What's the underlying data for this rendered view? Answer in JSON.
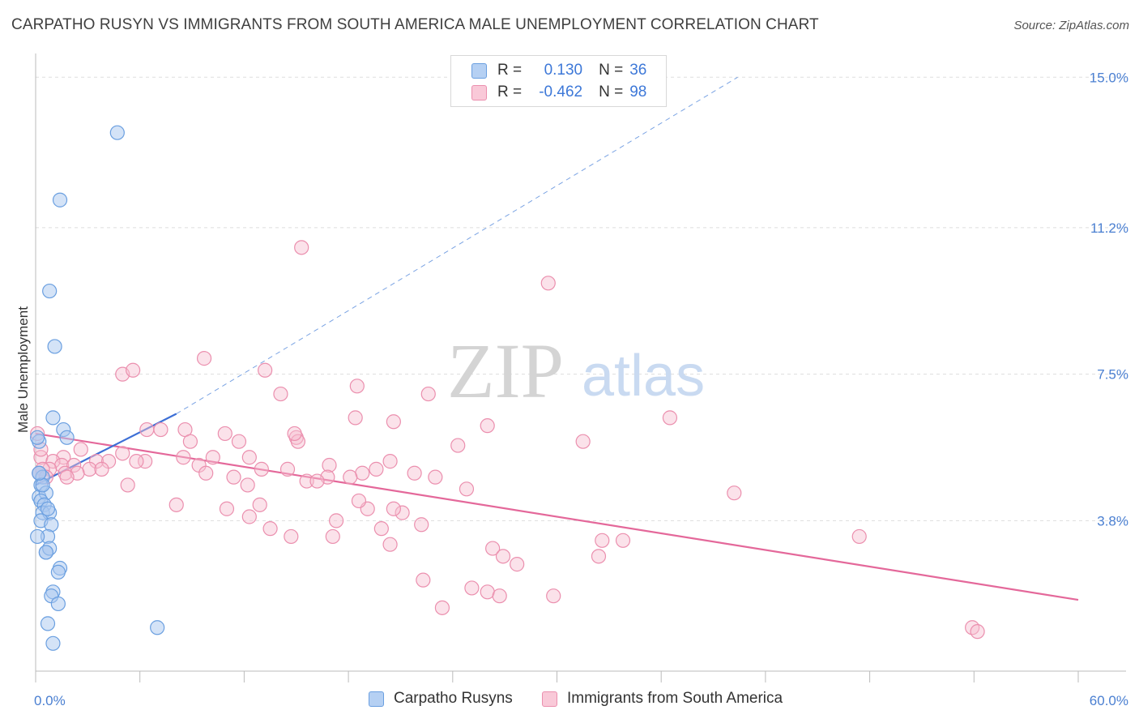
{
  "title": "CARPATHO RUSYN VS IMMIGRANTS FROM SOUTH AMERICA MALE UNEMPLOYMENT CORRELATION CHART",
  "source": "Source: ZipAtlas.com",
  "watermark": {
    "zip": "ZIP",
    "atlas": "atlas"
  },
  "stats_legend": [
    {
      "r_label": "R =",
      "r_value": "0.130",
      "n_label": "N =",
      "n_value": "36"
    },
    {
      "r_label": "R =",
      "r_value": "-0.462",
      "n_label": "N =",
      "n_value": "98"
    }
  ],
  "colors": {
    "blue_fill": "#a9c8f0",
    "blue_stroke": "#6a9fe0",
    "blue_line": "#3d6fd6",
    "pink_fill": "#f7bfd0",
    "pink_stroke": "#eb8fae",
    "pink_line": "#e4689a",
    "tick_text": "#4a7fd1",
    "grid": "#dddddd"
  },
  "chart_data": {
    "type": "scatter",
    "ylabel": "Male Unemployment",
    "x_range": [
      0,
      60
    ],
    "y_range": [
      0,
      15.6
    ],
    "x_tick_labels": [
      "0.0%",
      "60.0%"
    ],
    "y_ticks": [
      3.8,
      7.5,
      11.2,
      15.0
    ],
    "y_tick_labels": [
      "3.8%",
      "7.5%",
      "11.2%",
      "15.0%"
    ],
    "grid": "horizontal dashed",
    "legend": [
      "Carpatho Rusyns",
      "Immigrants from South America"
    ],
    "series": [
      {
        "name": "Carpatho Rusyns",
        "trend": {
          "x0": 0.0,
          "y0": 4.7,
          "x1": 8.1,
          "y1": 6.5,
          "dashed_to_x": 40.4,
          "dashed_to_y": 15.0
        },
        "points": [
          [
            4.7,
            13.6
          ],
          [
            1.4,
            11.9
          ],
          [
            0.8,
            9.6
          ],
          [
            1.1,
            8.2
          ],
          [
            1.0,
            6.4
          ],
          [
            1.6,
            6.1
          ],
          [
            1.8,
            5.9
          ],
          [
            0.2,
            5.8
          ],
          [
            0.1,
            5.9
          ],
          [
            0.2,
            5.0
          ],
          [
            0.4,
            4.9
          ],
          [
            0.3,
            4.7
          ],
          [
            0.2,
            4.4
          ],
          [
            0.6,
            4.5
          ],
          [
            0.3,
            4.3
          ],
          [
            0.5,
            4.2
          ],
          [
            0.4,
            4.0
          ],
          [
            0.8,
            4.0
          ],
          [
            0.3,
            3.8
          ],
          [
            0.9,
            3.7
          ],
          [
            0.7,
            3.4
          ],
          [
            0.6,
            3.0
          ],
          [
            0.8,
            3.1
          ],
          [
            0.6,
            3.0
          ],
          [
            1.4,
            2.6
          ],
          [
            1.3,
            2.5
          ],
          [
            1.0,
            2.0
          ],
          [
            0.9,
            1.9
          ],
          [
            1.3,
            1.7
          ],
          [
            0.7,
            1.2
          ],
          [
            1.0,
            0.7
          ],
          [
            7.0,
            1.1
          ],
          [
            0.1,
            3.4
          ],
          [
            0.4,
            4.7
          ],
          [
            0.7,
            4.1
          ],
          [
            0.2,
            5.0
          ]
        ]
      },
      {
        "name": "Immigrants from South America",
        "trend": {
          "x0": 0.0,
          "y0": 6.0,
          "x1": 60.0,
          "y1": 1.8
        },
        "points": [
          [
            15.3,
            10.7
          ],
          [
            29.5,
            9.8
          ],
          [
            9.7,
            7.9
          ],
          [
            5.0,
            7.5
          ],
          [
            5.6,
            7.6
          ],
          [
            13.2,
            7.6
          ],
          [
            18.5,
            7.2
          ],
          [
            14.1,
            7.0
          ],
          [
            22.6,
            7.0
          ],
          [
            36.5,
            6.4
          ],
          [
            18.4,
            6.4
          ],
          [
            26.0,
            6.2
          ],
          [
            20.6,
            6.3
          ],
          [
            6.4,
            6.1
          ],
          [
            7.2,
            6.1
          ],
          [
            8.6,
            6.1
          ],
          [
            10.9,
            6.0
          ],
          [
            15.0,
            5.9
          ],
          [
            15.1,
            5.8
          ],
          [
            11.7,
            5.8
          ],
          [
            8.9,
            5.8
          ],
          [
            24.3,
            5.7
          ],
          [
            2.6,
            5.6
          ],
          [
            5.0,
            5.5
          ],
          [
            1.6,
            5.4
          ],
          [
            3.5,
            5.3
          ],
          [
            4.2,
            5.3
          ],
          [
            6.3,
            5.3
          ],
          [
            8.5,
            5.4
          ],
          [
            10.2,
            5.4
          ],
          [
            12.3,
            5.4
          ],
          [
            16.9,
            5.2
          ],
          [
            20.4,
            5.3
          ],
          [
            0.3,
            5.4
          ],
          [
            1.0,
            5.3
          ],
          [
            1.5,
            5.2
          ],
          [
            2.2,
            5.2
          ],
          [
            3.1,
            5.1
          ],
          [
            3.8,
            5.1
          ],
          [
            0.8,
            5.1
          ],
          [
            0.4,
            5.1
          ],
          [
            0.2,
            5.0
          ],
          [
            1.7,
            5.0
          ],
          [
            2.4,
            5.0
          ],
          [
            5.8,
            5.3
          ],
          [
            9.4,
            5.2
          ],
          [
            13.0,
            5.1
          ],
          [
            14.5,
            5.1
          ],
          [
            16.8,
            4.9
          ],
          [
            18.8,
            5.0
          ],
          [
            19.6,
            5.1
          ],
          [
            21.8,
            5.0
          ],
          [
            23.0,
            4.9
          ],
          [
            9.8,
            5.0
          ],
          [
            11.4,
            4.9
          ],
          [
            15.6,
            4.8
          ],
          [
            16.2,
            4.8
          ],
          [
            18.1,
            4.9
          ],
          [
            0.6,
            4.9
          ],
          [
            1.8,
            4.9
          ],
          [
            5.3,
            4.7
          ],
          [
            12.2,
            4.7
          ],
          [
            24.8,
            4.6
          ],
          [
            40.2,
            4.5
          ],
          [
            8.1,
            4.2
          ],
          [
            11.0,
            4.1
          ],
          [
            12.9,
            4.2
          ],
          [
            19.1,
            4.1
          ],
          [
            21.1,
            4.0
          ],
          [
            20.6,
            4.1
          ],
          [
            17.3,
            3.8
          ],
          [
            12.3,
            3.9
          ],
          [
            22.2,
            3.7
          ],
          [
            13.5,
            3.6
          ],
          [
            19.9,
            3.6
          ],
          [
            14.7,
            3.4
          ],
          [
            17.1,
            3.4
          ],
          [
            32.6,
            3.3
          ],
          [
            33.8,
            3.3
          ],
          [
            47.4,
            3.4
          ],
          [
            20.4,
            3.2
          ],
          [
            26.3,
            3.1
          ],
          [
            26.9,
            2.9
          ],
          [
            27.7,
            2.7
          ],
          [
            32.4,
            2.9
          ],
          [
            22.3,
            2.3
          ],
          [
            25.1,
            2.1
          ],
          [
            26.0,
            2.0
          ],
          [
            26.7,
            1.9
          ],
          [
            29.8,
            1.9
          ],
          [
            23.4,
            1.6
          ],
          [
            53.9,
            1.1
          ],
          [
            54.2,
            1.0
          ],
          [
            0.1,
            6.0
          ],
          [
            0.3,
            5.6
          ],
          [
            14.9,
            6.0
          ],
          [
            31.5,
            5.8
          ],
          [
            18.6,
            4.3
          ]
        ]
      }
    ]
  }
}
